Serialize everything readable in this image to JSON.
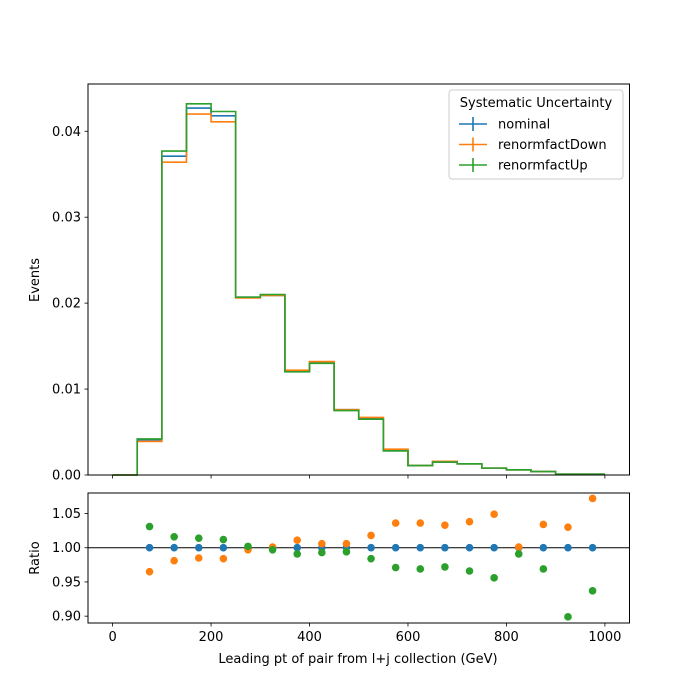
{
  "chart_data": [
    {
      "type": "line",
      "subtype": "step-histogram",
      "title": "",
      "xlabel": "",
      "ylabel": "Events",
      "xlim": [
        -50,
        1050
      ],
      "ylim": [
        0,
        0.0455
      ],
      "yticks": [
        0.0,
        0.01,
        0.02,
        0.03,
        0.04
      ],
      "ytick_labels": [
        "0.00",
        "0.01",
        "0.02",
        "0.03",
        "0.04"
      ],
      "xticks": [
        0,
        200,
        400,
        600,
        800,
        1000
      ],
      "bin_edges": [
        0,
        50,
        100,
        150,
        200,
        250,
        300,
        350,
        400,
        450,
        500,
        550,
        600,
        650,
        700,
        750,
        800,
        850,
        900,
        950,
        1000
      ],
      "legend": {
        "title": "Systematic Uncertainty",
        "position": "top-right"
      },
      "series": [
        {
          "name": "nominal",
          "color": "#1f77b4",
          "values": [
            0.0,
            0.0041,
            0.0371,
            0.0427,
            0.0418,
            0.0207,
            0.0209,
            0.0121,
            0.0131,
            0.0076,
            0.0066,
            0.0029,
            0.0011,
            0.0015,
            0.0013,
            0.0008,
            0.0006,
            0.0004,
            0.0001,
            0.0001
          ]
        },
        {
          "name": "renormfactDown",
          "color": "#ff7f0e",
          "values": [
            0.0,
            0.0039,
            0.0364,
            0.042,
            0.0411,
            0.0206,
            0.0209,
            0.0122,
            0.0132,
            0.0076,
            0.0067,
            0.003,
            0.0011,
            0.0016,
            0.0013,
            0.0008,
            0.0006,
            0.0004,
            0.0001,
            0.0001
          ]
        },
        {
          "name": "renormfactUp",
          "color": "#2ca02c",
          "values": [
            0.0,
            0.0042,
            0.0377,
            0.0432,
            0.0423,
            0.0207,
            0.021,
            0.012,
            0.013,
            0.0075,
            0.0065,
            0.0028,
            0.0011,
            0.0015,
            0.0013,
            0.0008,
            0.0006,
            0.0004,
            0.0001,
            0.0001
          ]
        }
      ]
    },
    {
      "type": "scatter",
      "title": "",
      "xlabel": "Leading pt of pair from l+j collection (GeV)",
      "ylabel": "Ratio",
      "xlim": [
        -50,
        1050
      ],
      "ylim": [
        0.89,
        1.08
      ],
      "xticks": [
        0,
        200,
        400,
        600,
        800,
        1000
      ],
      "xtick_labels": [
        "0",
        "200",
        "400",
        "600",
        "800",
        "1000"
      ],
      "yticks": [
        0.9,
        0.95,
        1.0,
        1.05
      ],
      "ytick_labels": [
        "0.90",
        "0.95",
        "1.00",
        "1.05"
      ],
      "reference_line": 1.0,
      "x": [
        75,
        125,
        175,
        225,
        275,
        325,
        375,
        425,
        475,
        525,
        575,
        625,
        675,
        725,
        775,
        825,
        875,
        925,
        975
      ],
      "series": [
        {
          "name": "nominal",
          "color": "#1f77b4",
          "values": [
            1.0,
            1.0,
            1.0,
            1.0,
            1.0,
            1.0,
            1.0,
            1.0,
            1.0,
            1.0,
            1.0,
            1.0,
            1.0,
            1.0,
            1.0,
            1.0,
            1.0,
            1.0,
            1.0
          ]
        },
        {
          "name": "renormfactDown",
          "color": "#ff7f0e",
          "values": [
            0.965,
            0.981,
            0.985,
            0.984,
            0.997,
            1.001,
            1.011,
            1.006,
            1.006,
            1.018,
            1.036,
            1.036,
            1.033,
            1.038,
            1.049,
            1.001,
            1.034,
            1.03,
            1.072
          ]
        },
        {
          "name": "renormfactUp",
          "color": "#2ca02c",
          "values": [
            1.031,
            1.016,
            1.014,
            1.012,
            1.002,
            0.997,
            0.991,
            0.993,
            0.994,
            0.984,
            0.971,
            0.969,
            0.972,
            0.966,
            0.956,
            0.991,
            0.969,
            0.899,
            0.937
          ]
        }
      ]
    }
  ]
}
